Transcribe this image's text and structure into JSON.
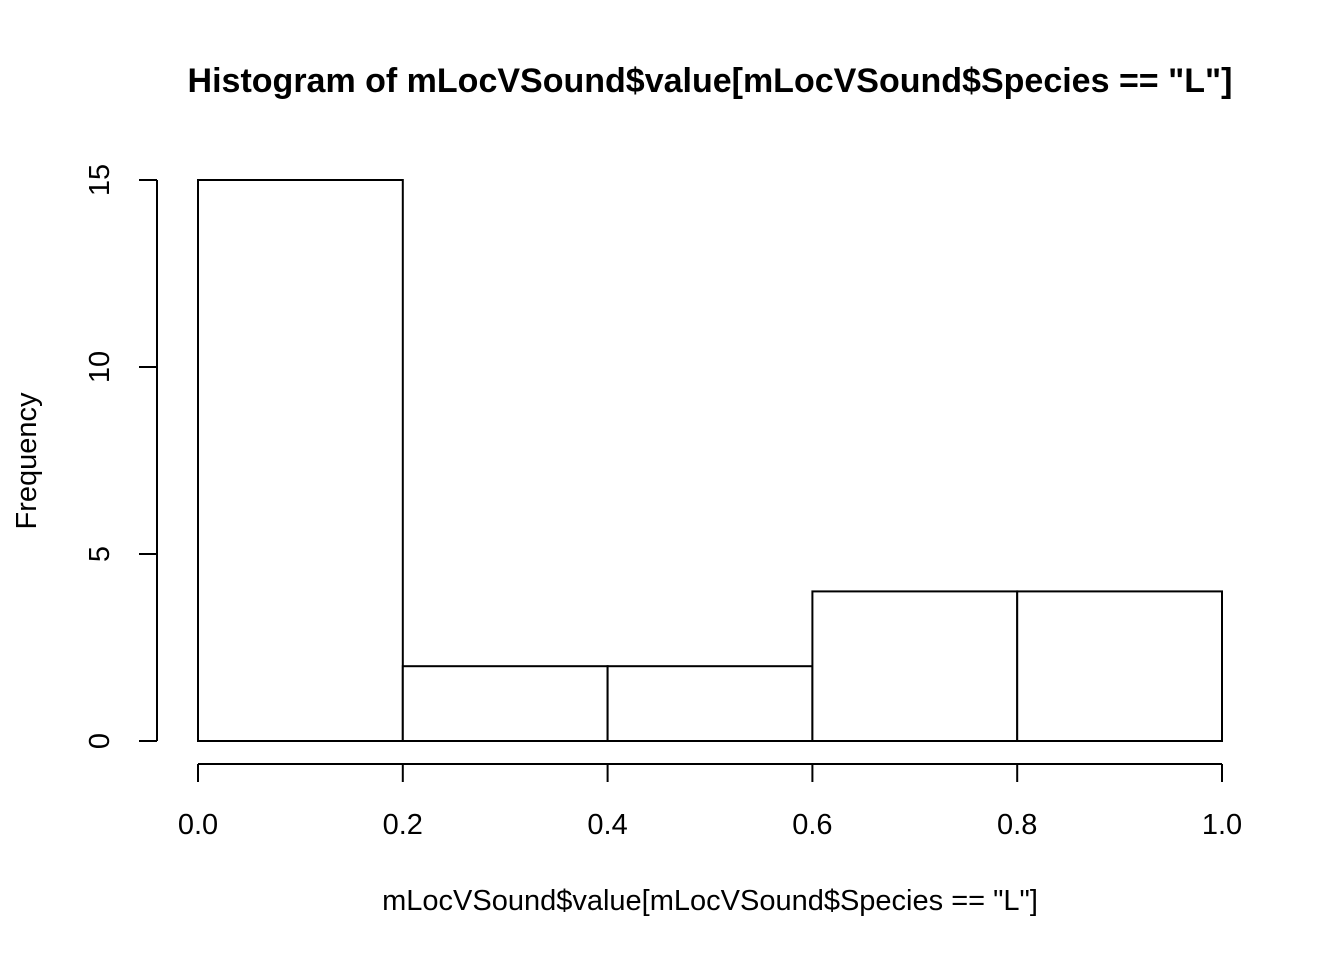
{
  "chart_data": {
    "type": "bar",
    "title": "Histogram of mLocVSound$value[mLocVSound$Species == \"L\"]",
    "xlabel": "mLocVSound$value[mLocVSound$Species == \"L\"]",
    "ylabel": "Frequency",
    "bins": [
      {
        "start": 0.0,
        "end": 0.2,
        "count": 15
      },
      {
        "start": 0.2,
        "end": 0.4,
        "count": 2
      },
      {
        "start": 0.4,
        "end": 0.6,
        "count": 2
      },
      {
        "start": 0.6,
        "end": 0.8,
        "count": 4
      },
      {
        "start": 0.8,
        "end": 1.0,
        "count": 4
      }
    ],
    "xlim": [
      0.0,
      1.0
    ],
    "ylim": [
      0,
      15
    ],
    "x_ticks": [
      "0.0",
      "0.2",
      "0.4",
      "0.6",
      "0.8",
      "1.0"
    ],
    "y_ticks": [
      "0",
      "5",
      "10",
      "15"
    ],
    "grid": false,
    "colors": {
      "bar_fill": "#ffffff",
      "bar_stroke": "#000000"
    }
  }
}
